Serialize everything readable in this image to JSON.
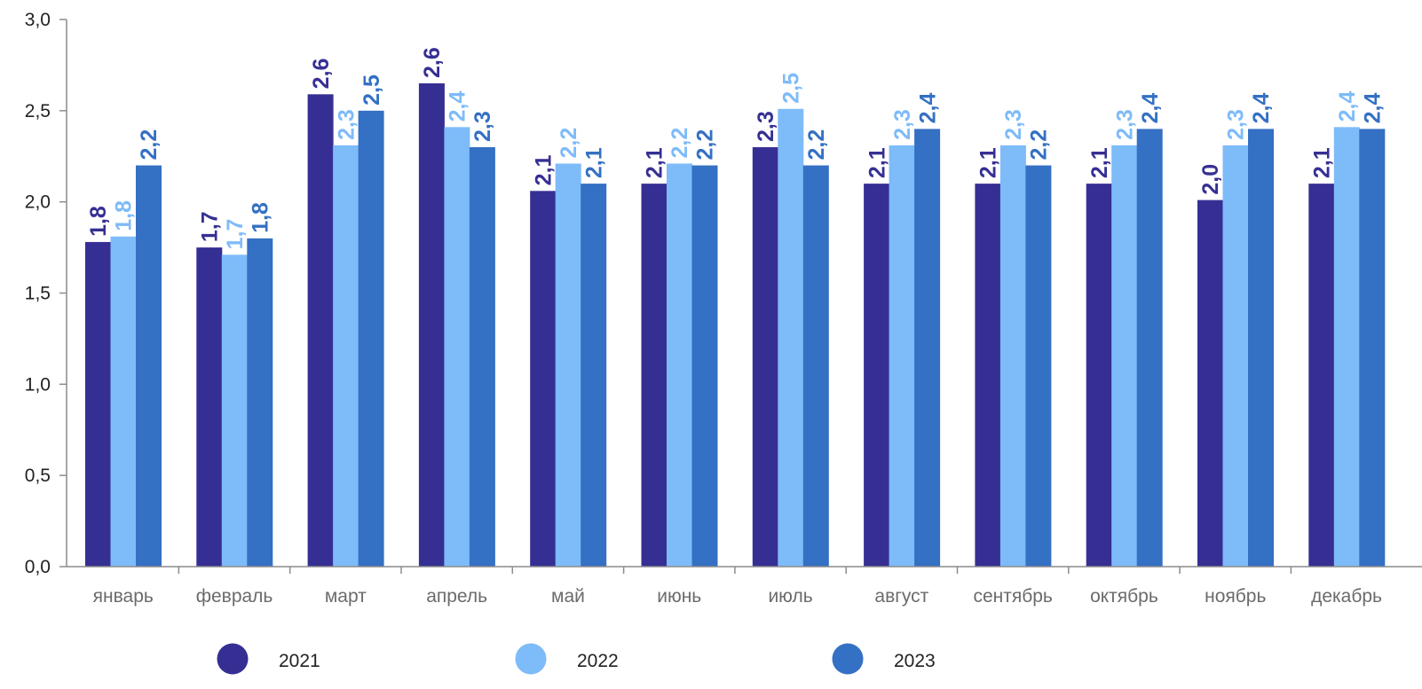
{
  "chart_data": {
    "type": "bar",
    "title": "",
    "xlabel": "",
    "ylabel": "",
    "ylim": [
      0,
      3.0
    ],
    "yticks": [
      "0,0",
      "0,5",
      "1,0",
      "1,5",
      "2,0",
      "2,5",
      "3,0"
    ],
    "grid": false,
    "legend_position": "bottom",
    "categories": [
      "январь",
      "февраль",
      "март",
      "апрель",
      "май",
      "июнь",
      "июль",
      "август",
      "сентябрь",
      "октябрь",
      "ноябрь",
      "декабрь"
    ],
    "series": [
      {
        "name": "2021",
        "color": "#362F93",
        "values": [
          1.78,
          1.75,
          2.59,
          2.65,
          2.06,
          2.1,
          2.3,
          2.1,
          2.1,
          2.1,
          2.01,
          2.1
        ],
        "labels": [
          "1,8",
          "1,7",
          "2,6",
          "2,6",
          "2,1",
          "2,1",
          "2,3",
          "2,1",
          "2,1",
          "2,1",
          "2,0",
          "2,1"
        ]
      },
      {
        "name": "2022",
        "color": "#7EBBF9",
        "values": [
          1.81,
          1.71,
          2.31,
          2.41,
          2.21,
          2.21,
          2.51,
          2.31,
          2.31,
          2.31,
          2.31,
          2.41
        ],
        "labels": [
          "1,8",
          "1,7",
          "2,3",
          "2,4",
          "2,2",
          "2,2",
          "2,5",
          "2,3",
          "2,3",
          "2,3",
          "2,3",
          "2,4"
        ]
      },
      {
        "name": "2023",
        "color": "#3470C3",
        "values": [
          2.2,
          1.8,
          2.5,
          2.3,
          2.1,
          2.2,
          2.2,
          2.4,
          2.2,
          2.4,
          2.4,
          2.4
        ],
        "labels": [
          "2,2",
          "1,8",
          "2,5",
          "2,3",
          "2,1",
          "2,2",
          "2,2",
          "2,4",
          "2,2",
          "2,4",
          "2,4",
          "2,4"
        ]
      }
    ],
    "axis_color": "#8c8c8c"
  }
}
